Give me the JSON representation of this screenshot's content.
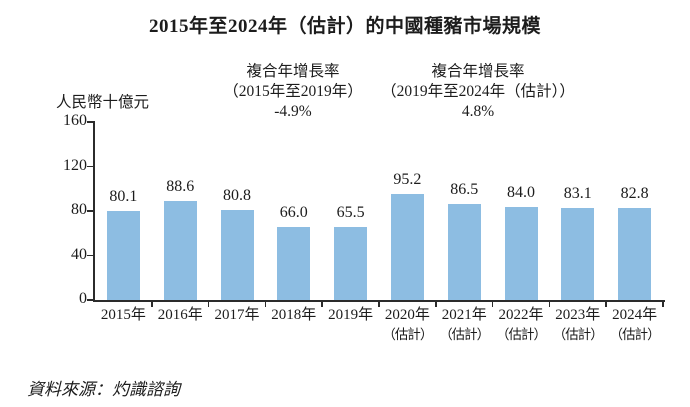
{
  "chart_data": {
    "type": "bar",
    "title": "2015年至2024年（估計）的中國種豬市場規模",
    "unit_label": "人民幣十億元",
    "categories": [
      "2015年",
      "2016年",
      "2017年",
      "2018年",
      "2019年",
      "2020年（估計）",
      "2021年（估計）",
      "2022年（估計）",
      "2023年（估計）",
      "2024年（估計）"
    ],
    "x_tick_lines": [
      [
        "2015年"
      ],
      [
        "2016年"
      ],
      [
        "2017年"
      ],
      [
        "2018年"
      ],
      [
        "2019年"
      ],
      [
        "2020年",
        "（估計）"
      ],
      [
        "2021年",
        "（估計）"
      ],
      [
        "2022年",
        "（估計）"
      ],
      [
        "2023年",
        "（估計）"
      ],
      [
        "2024年",
        "（估計）"
      ]
    ],
    "values": [
      80.1,
      88.6,
      80.8,
      66.0,
      65.5,
      95.2,
      86.5,
      84.0,
      83.1,
      82.8
    ],
    "ylim": [
      0,
      160
    ],
    "yticks": [
      0,
      40,
      80,
      120,
      160
    ],
    "grid": false,
    "legend": false,
    "bar_color": "#8dbde2",
    "annotations": [
      {
        "label": "複合年增長率",
        "period": "（2015年至2019年）",
        "value": "-4.9%"
      },
      {
        "label": "複合年增長率",
        "period": "（2019年至2024年（估計））",
        "value": "4.8%"
      }
    ]
  },
  "source_note": "資料來源：灼識諮詢"
}
